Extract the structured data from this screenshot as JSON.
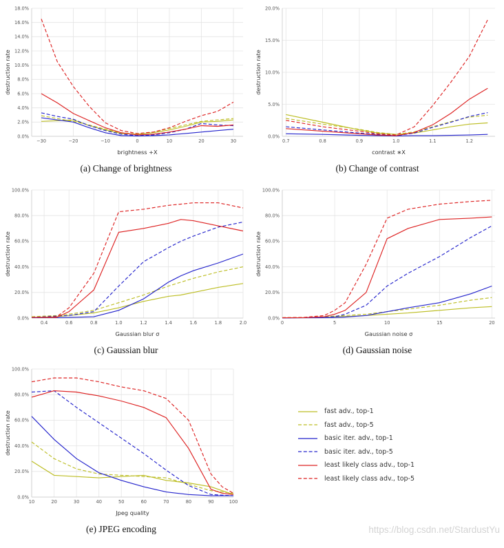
{
  "page": {
    "watermark": "https://blog.csdn.net/StardustYu"
  },
  "legend": {
    "items": [
      {
        "label": "fast adv., top-1",
        "color": "#bcbd22",
        "dash": "solid"
      },
      {
        "label": "fast adv., top-5",
        "color": "#bcbd22",
        "dash": "dashed"
      },
      {
        "label": "basic iter. adv., top-1",
        "color": "#2222cc",
        "dash": "solid"
      },
      {
        "label": "basic iter. adv., top-5",
        "color": "#2222cc",
        "dash": "dashed"
      },
      {
        "label": "least likely class adv., top-1",
        "color": "#dd2020",
        "dash": "solid"
      },
      {
        "label": "least likely class adv., top-5",
        "color": "#dd2020",
        "dash": "dashed"
      }
    ]
  },
  "chart_data": [
    {
      "id": "brightness",
      "type": "line",
      "caption": "(a) Change of brightness",
      "xlabel": "brightness +X",
      "ylabel": "destruction rate",
      "grid": true,
      "legend_position": "separate-box",
      "xlim": [
        -33,
        33
      ],
      "ylim": [
        0,
        18
      ],
      "xticks": [
        -30,
        -20,
        -10,
        0,
        10,
        20,
        30
      ],
      "xtick_labels": [
        "−30",
        "−20",
        "−10",
        "0",
        "10",
        "20",
        "30"
      ],
      "yticks": [
        0,
        2,
        4,
        6,
        8,
        10,
        12,
        14,
        16,
        18
      ],
      "ytick_labels": [
        "0.0%",
        "2.0%",
        "4.0%",
        "6.0%",
        "8.0%",
        "10.0%",
        "12.0%",
        "14.0%",
        "16.0%",
        "18.0%"
      ],
      "x": [
        -30,
        -25,
        -20,
        -15,
        -10,
        -5,
        0,
        5,
        10,
        15,
        20,
        25,
        30
      ],
      "series": [
        {
          "legend": 0,
          "values": [
            2.1,
            2.2,
            2.3,
            1.5,
            0.9,
            0.4,
            0.3,
            0.5,
            0.9,
            1.4,
            2.0,
            2.1,
            2.3
          ]
        },
        {
          "legend": 1,
          "values": [
            2.9,
            2.5,
            2.1,
            1.6,
            1.0,
            0.5,
            0.3,
            0.6,
            1.1,
            1.6,
            2.1,
            2.3,
            2.5
          ]
        },
        {
          "legend": 2,
          "values": [
            2.6,
            2.3,
            2.0,
            1.2,
            0.5,
            0.1,
            0.05,
            0.1,
            0.2,
            0.4,
            0.6,
            0.8,
            1.0
          ]
        },
        {
          "legend": 3,
          "values": [
            3.3,
            2.8,
            2.4,
            1.5,
            0.8,
            0.3,
            0.1,
            0.2,
            0.5,
            1.0,
            1.8,
            1.6,
            1.5
          ]
        },
        {
          "legend": 4,
          "values": [
            6.0,
            4.7,
            3.2,
            2.2,
            1.2,
            0.5,
            0.2,
            0.3,
            0.6,
            1.0,
            1.5,
            1.4,
            1.6
          ]
        },
        {
          "legend": 5,
          "values": [
            16.5,
            10.5,
            7.0,
            4.2,
            1.9,
            0.8,
            0.4,
            0.6,
            1.2,
            2.1,
            2.9,
            3.5,
            4.8
          ]
        }
      ]
    },
    {
      "id": "contrast",
      "type": "line",
      "caption": "(b) Change of contrast",
      "xlabel": "contrast ∗X",
      "ylabel": "destruction rate",
      "grid": true,
      "xlim": [
        0.69,
        1.27
      ],
      "ylim": [
        0,
        20
      ],
      "xticks": [
        0.7,
        0.8,
        0.9,
        1.0,
        1.1,
        1.2
      ],
      "xtick_labels": [
        "0.7",
        "0.8",
        "0.9",
        "1.0",
        "1.1",
        "1.2"
      ],
      "yticks": [
        0,
        5,
        10,
        15,
        20
      ],
      "ytick_labels": [
        "0.0%",
        "5.0%",
        "10.0%",
        "15.0%",
        "20.0%"
      ],
      "x": [
        0.7,
        0.8,
        0.9,
        0.95,
        1.0,
        1.05,
        1.1,
        1.15,
        1.2,
        1.25
      ],
      "series": [
        {
          "legend": 0,
          "values": [
            3.4,
            2.2,
            1.0,
            0.5,
            0.3,
            0.5,
            1.0,
            1.5,
            1.9,
            2.1
          ]
        },
        {
          "legend": 1,
          "values": [
            2.8,
            1.9,
            1.1,
            0.6,
            0.3,
            0.7,
            1.5,
            2.3,
            3.0,
            3.3
          ]
        },
        {
          "legend": 2,
          "values": [
            0.4,
            0.3,
            0.15,
            0.1,
            0.05,
            0.1,
            0.1,
            0.15,
            0.2,
            0.3
          ]
        },
        {
          "legend": 3,
          "values": [
            1.5,
            1.0,
            0.5,
            0.3,
            0.1,
            0.5,
            1.4,
            2.2,
            3.1,
            3.7
          ]
        },
        {
          "legend": 4,
          "values": [
            1.2,
            0.8,
            0.4,
            0.2,
            0.1,
            0.6,
            1.8,
            3.6,
            5.8,
            7.5
          ]
        },
        {
          "legend": 5,
          "values": [
            2.5,
            1.5,
            0.8,
            0.4,
            0.2,
            1.5,
            4.8,
            8.5,
            12.5,
            18.2
          ]
        }
      ]
    },
    {
      "id": "gaussian-blur",
      "type": "line",
      "caption": "(c) Gaussian blur",
      "xlabel": "Gaussian blur σ",
      "ylabel": "destruction rate",
      "grid": true,
      "xlim": [
        0.3,
        2.0
      ],
      "ylim": [
        0,
        100
      ],
      "xticks": [
        0.4,
        0.6,
        0.8,
        1.0,
        1.2,
        1.4,
        1.6,
        1.8,
        2.0
      ],
      "xtick_labels": [
        "0.4",
        "0.6",
        "0.8",
        "1.0",
        "1.2",
        "1.4",
        "1.6",
        "1.8",
        "2.0"
      ],
      "yticks": [
        0,
        20,
        40,
        60,
        80,
        100
      ],
      "ytick_labels": [
        "0.0%",
        "20.0%",
        "40.0%",
        "60.0%",
        "80.0%",
        "100.0%"
      ],
      "x": [
        0.3,
        0.5,
        0.6,
        0.8,
        1.0,
        1.2,
        1.4,
        1.5,
        1.6,
        1.8,
        2.0
      ],
      "series": [
        {
          "legend": 0,
          "values": [
            0.5,
            1.0,
            2.0,
            4.0,
            8.0,
            13.0,
            17.0,
            18.0,
            20.0,
            24.0,
            27.0
          ]
        },
        {
          "legend": 1,
          "values": [
            1.0,
            2.0,
            3.0,
            6.0,
            12.0,
            18.0,
            25.0,
            28.0,
            31.0,
            36.0,
            40.0
          ]
        },
        {
          "legend": 2,
          "values": [
            0.3,
            0.3,
            0.5,
            1.0,
            6.0,
            15.0,
            28.0,
            33.0,
            37.0,
            43.0,
            50.0
          ]
        },
        {
          "legend": 3,
          "values": [
            0.5,
            1.5,
            2.0,
            5.0,
            25.0,
            44.0,
            55.0,
            60.0,
            64.0,
            71.0,
            75.0
          ]
        },
        {
          "legend": 4,
          "values": [
            0.5,
            0.5,
            5.0,
            22.0,
            67.0,
            70.0,
            74.0,
            77.0,
            76.0,
            72.0,
            68.0
          ]
        },
        {
          "legend": 5,
          "values": [
            0.5,
            1.0,
            8.0,
            35.0,
            83.0,
            85.0,
            88.0,
            89.0,
            90.0,
            90.0,
            86.0
          ]
        }
      ]
    },
    {
      "id": "gaussian-noise",
      "type": "line",
      "caption": "(d) Gaussian noise",
      "xlabel": "Gaussian noise σ",
      "ylabel": "destruction rate",
      "grid": true,
      "xlim": [
        0,
        20.3
      ],
      "ylim": [
        0,
        100
      ],
      "xticks": [
        0,
        5,
        10,
        15,
        20
      ],
      "xtick_labels": [
        "0",
        "5",
        "10",
        "15",
        "20"
      ],
      "yticks": [
        0,
        20,
        40,
        60,
        80,
        100
      ],
      "ytick_labels": [
        "0.0%",
        "20.0%",
        "40.0%",
        "60.0%",
        "80.0%",
        "100.0%"
      ],
      "x": [
        0,
        2,
        4,
        5,
        6,
        8,
        10,
        12,
        15,
        18,
        20
      ],
      "series": [
        {
          "legend": 0,
          "values": [
            0.2,
            0.3,
            0.5,
            1.0,
            1.2,
            2.0,
            3.0,
            4.0,
            6.0,
            8.0,
            9.0
          ]
        },
        {
          "legend": 1,
          "values": [
            0.3,
            0.5,
            1.0,
            1.5,
            2.0,
            3.0,
            5.0,
            7.0,
            10.0,
            14.0,
            16.0
          ]
        },
        {
          "legend": 2,
          "values": [
            0.1,
            0.2,
            0.3,
            0.5,
            0.8,
            2.0,
            5.0,
            8.0,
            12.0,
            19.0,
            25.0
          ]
        },
        {
          "legend": 3,
          "values": [
            0.2,
            0.3,
            0.5,
            1.0,
            3.0,
            10.0,
            25.0,
            35.0,
            48.0,
            63.0,
            72.0
          ]
        },
        {
          "legend": 4,
          "values": [
            0.2,
            0.3,
            1.0,
            3.0,
            6.0,
            20.0,
            62.0,
            70.0,
            77.0,
            78.0,
            79.0
          ]
        },
        {
          "legend": 5,
          "values": [
            0.3,
            0.5,
            2.0,
            6.0,
            12.0,
            42.0,
            78.0,
            85.0,
            89.0,
            91.0,
            92.0
          ]
        }
      ]
    },
    {
      "id": "jpeg-encoding",
      "type": "line",
      "caption": "(e) JPEG encoding",
      "xlabel": "Jpeg quality",
      "ylabel": "destruction rate",
      "grid": true,
      "xlim": [
        10,
        100
      ],
      "ylim": [
        0,
        100
      ],
      "xticks": [
        10,
        20,
        30,
        40,
        50,
        60,
        70,
        80,
        90,
        100
      ],
      "xtick_labels": [
        "10",
        "20",
        "30",
        "40",
        "50",
        "60",
        "70",
        "80",
        "90",
        "100"
      ],
      "yticks": [
        0,
        20,
        40,
        60,
        80,
        100
      ],
      "ytick_labels": [
        "0.0%",
        "20.0%",
        "40.0%",
        "60.0%",
        "80.0%",
        "100.0%"
      ],
      "x": [
        10,
        20,
        30,
        40,
        50,
        60,
        70,
        80,
        90,
        95,
        100
      ],
      "series": [
        {
          "legend": 0,
          "values": [
            28,
            17,
            16,
            15,
            16,
            17,
            13,
            11,
            8,
            5,
            2
          ]
        },
        {
          "legend": 1,
          "values": [
            43,
            30,
            22,
            18,
            17,
            16,
            15,
            10,
            5,
            4,
            3
          ]
        },
        {
          "legend": 2,
          "values": [
            63,
            45,
            30,
            19,
            13,
            8,
            4,
            2,
            1,
            1,
            1
          ]
        },
        {
          "legend": 3,
          "values": [
            82,
            83,
            70,
            58,
            46,
            34,
            21,
            9,
            2,
            1.5,
            1
          ]
        },
        {
          "legend": 4,
          "values": [
            78,
            83,
            82,
            79,
            75,
            70,
            62,
            38,
            6,
            3,
            2
          ]
        },
        {
          "legend": 5,
          "values": [
            90,
            93,
            93,
            90,
            86,
            83,
            77,
            60,
            18,
            8,
            3
          ]
        }
      ]
    }
  ]
}
